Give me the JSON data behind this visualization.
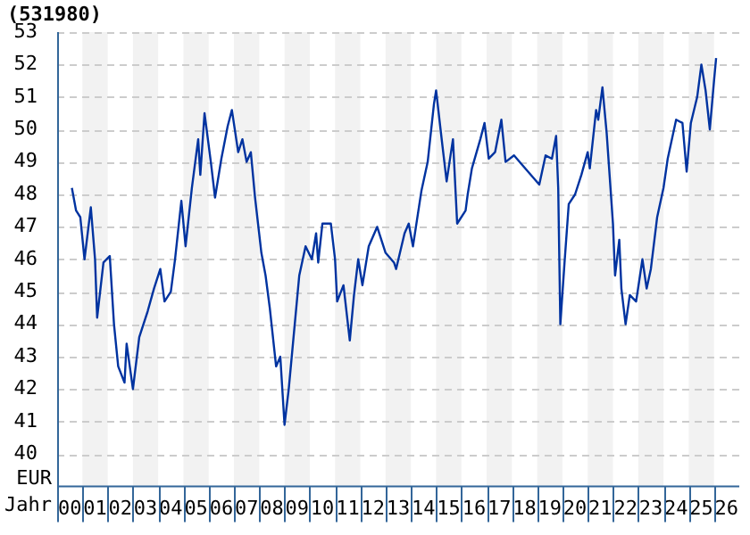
{
  "chart_data": {
    "type": "line",
    "title": "(531980)",
    "xlabel": "Jahr",
    "ylabel": "EUR",
    "color": "#0033a0",
    "x": [
      "2000-08",
      "2000-10",
      "2000-12",
      "2001-02",
      "2001-05",
      "2001-07",
      "2001-08",
      "2001-11",
      "2002-02",
      "2002-04",
      "2002-06",
      "2002-09",
      "2002-10",
      "2003-01",
      "2003-04",
      "2003-08",
      "2003-11",
      "2004-02",
      "2004-04",
      "2004-07",
      "2004-09",
      "2004-12",
      "2005-02",
      "2005-05",
      "2005-08",
      "2005-09",
      "2005-11",
      "2006-02",
      "2006-04",
      "2006-07",
      "2006-10",
      "2006-12",
      "2007-03",
      "2007-05",
      "2007-07",
      "2007-09",
      "2007-11",
      "2008-02",
      "2008-04",
      "2008-06",
      "2008-09",
      "2008-11",
      "2009-01",
      "2009-03",
      "2009-05",
      "2009-08",
      "2009-11",
      "2010-02",
      "2010-04",
      "2010-05",
      "2010-07",
      "2010-11",
      "2011-01",
      "2011-02",
      "2011-05",
      "2011-08",
      "2011-10",
      "2011-12",
      "2012-02",
      "2012-05",
      "2012-09",
      "2013-01",
      "2013-05",
      "2013-06",
      "2013-10",
      "2013-12",
      "2014-02",
      "2014-06",
      "2014-09",
      "2014-12",
      "2015-01",
      "2015-04",
      "2015-06",
      "2015-09",
      "2015-11",
      "2016-03",
      "2016-04",
      "2016-06",
      "2016-10",
      "2016-12",
      "2017-02",
      "2017-05",
      "2017-08",
      "2017-10",
      "2018-02",
      "2018-06",
      "2019-02",
      "2019-05",
      "2019-08",
      "2019-10",
      "2019-11",
      "2019-12",
      "2020-02",
      "2020-04",
      "2020-07",
      "2020-10",
      "2021-01",
      "2021-02",
      "2021-05",
      "2021-06",
      "2021-08",
      "2021-10",
      "2022-01",
      "2022-02",
      "2022-04",
      "2022-05",
      "2022-07",
      "2022-09",
      "2022-12",
      "2023-03",
      "2023-05",
      "2023-07",
      "2023-10",
      "2024-01",
      "2024-03",
      "2024-07",
      "2024-10",
      "2024-12",
      "2025-02",
      "2025-05",
      "2025-07",
      "2025-09",
      "2025-11",
      "2026-01",
      "2026-02"
    ],
    "values": [
      48.2,
      47.5,
      47.3,
      46.0,
      47.6,
      46.0,
      44.2,
      45.9,
      46.1,
      44.0,
      42.7,
      42.2,
      43.4,
      42.0,
      43.6,
      44.4,
      45.1,
      45.7,
      44.7,
      45.0,
      46.0,
      47.8,
      46.4,
      48.2,
      49.7,
      48.6,
      50.5,
      49.0,
      47.9,
      49.1,
      50.1,
      50.6,
      49.3,
      49.7,
      49.0,
      49.3,
      47.9,
      46.2,
      45.5,
      44.5,
      42.7,
      43.0,
      40.9,
      42.0,
      43.4,
      45.5,
      46.4,
      46.0,
      46.8,
      45.9,
      47.1,
      47.1,
      46.0,
      44.7,
      45.2,
      43.5,
      44.9,
      46.0,
      45.2,
      46.4,
      47.0,
      46.2,
      45.9,
      45.7,
      46.8,
      47.1,
      46.4,
      48.1,
      49.0,
      50.8,
      51.2,
      49.5,
      48.4,
      49.7,
      47.1,
      47.5,
      48.0,
      48.8,
      49.7,
      50.2,
      49.1,
      49.3,
      50.3,
      49.0,
      49.2,
      48.9,
      48.3,
      49.2,
      49.1,
      49.8,
      48.2,
      44.0,
      45.9,
      47.7,
      48.0,
      48.6,
      49.3,
      48.8,
      50.6,
      50.3,
      51.3,
      49.9,
      47.1,
      45.5,
      46.6,
      45.1,
      44.0,
      44.9,
      44.7,
      46.0,
      45.1,
      45.7,
      47.3,
      48.2,
      49.1,
      50.3,
      50.2,
      48.7,
      50.2,
      51.0,
      52.0,
      51.2,
      50.0,
      51.5,
      52.2
    ],
    "xlim": [
      "2000-01",
      "2027-01"
    ],
    "xticks": [
      {
        "value": "2000-07",
        "label": "00"
      },
      {
        "value": "2001-07",
        "label": "01"
      },
      {
        "value": "2002-07",
        "label": "02"
      },
      {
        "value": "2003-07",
        "label": "03"
      },
      {
        "value": "2004-07",
        "label": "04"
      },
      {
        "value": "2005-07",
        "label": "05"
      },
      {
        "value": "2006-07",
        "label": "06"
      },
      {
        "value": "2007-07",
        "label": "07"
      },
      {
        "value": "2008-07",
        "label": "08"
      },
      {
        "value": "2009-07",
        "label": "09"
      },
      {
        "value": "2010-07",
        "label": "10"
      },
      {
        "value": "2011-07",
        "label": "11"
      },
      {
        "value": "2012-07",
        "label": "12"
      },
      {
        "value": "2013-07",
        "label": "13"
      },
      {
        "value": "2014-07",
        "label": "14"
      },
      {
        "value": "2015-07",
        "label": "15"
      },
      {
        "value": "2016-07",
        "label": "16"
      },
      {
        "value": "2017-07",
        "label": "17"
      },
      {
        "value": "2018-07",
        "label": "18"
      },
      {
        "value": "2019-07",
        "label": "19"
      },
      {
        "value": "2020-07",
        "label": "20"
      },
      {
        "value": "2021-07",
        "label": "21"
      },
      {
        "value": "2022-07",
        "label": "22"
      },
      {
        "value": "2023-07",
        "label": "23"
      },
      {
        "value": "2024-07",
        "label": "24"
      },
      {
        "value": "2025-07",
        "label": "25"
      },
      {
        "value": "2026-07",
        "label": "26"
      }
    ],
    "ylim": [
      39,
      53
    ],
    "yticks": [
      40,
      41,
      42,
      43,
      44,
      45,
      46,
      47,
      48,
      49,
      50,
      51,
      52,
      53
    ],
    "bands": [
      {
        "axis": "x",
        "from": "2001-01",
        "to": "2002-01",
        "color": "#f2f2f2"
      },
      {
        "axis": "x",
        "from": "2003-01",
        "to": "2004-01",
        "color": "#f2f2f2"
      },
      {
        "axis": "x",
        "from": "2005-01",
        "to": "2006-01",
        "color": "#f2f2f2"
      },
      {
        "axis": "x",
        "from": "2007-01",
        "to": "2008-01",
        "color": "#f2f2f2"
      },
      {
        "axis": "x",
        "from": "2009-01",
        "to": "2010-01",
        "color": "#f2f2f2"
      },
      {
        "axis": "x",
        "from": "2011-01",
        "to": "2012-01",
        "color": "#f2f2f2"
      },
      {
        "axis": "x",
        "from": "2013-01",
        "to": "2014-01",
        "color": "#f2f2f2"
      },
      {
        "axis": "x",
        "from": "2015-01",
        "to": "2016-01",
        "color": "#f2f2f2"
      },
      {
        "axis": "x",
        "from": "2017-01",
        "to": "2018-01",
        "color": "#f2f2f2"
      },
      {
        "axis": "x",
        "from": "2019-01",
        "to": "2020-01",
        "color": "#f2f2f2"
      },
      {
        "axis": "x",
        "from": "2021-01",
        "to": "2022-01",
        "color": "#f2f2f2"
      },
      {
        "axis": "x",
        "from": "2023-01",
        "to": "2024-01",
        "color": "#f2f2f2"
      },
      {
        "axis": "x",
        "from": "2025-01",
        "to": "2026-01",
        "color": "#f2f2f2"
      }
    ],
    "grid": "y",
    "legend": false,
    "marker": "none",
    "line_style": "solid"
  }
}
